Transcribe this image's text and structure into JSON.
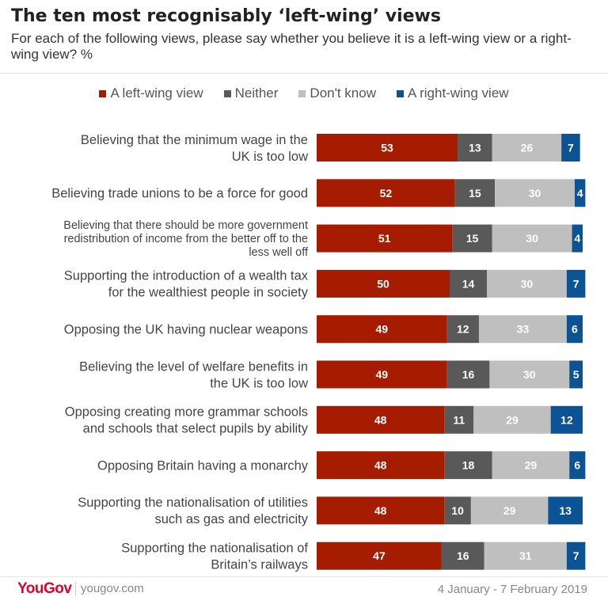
{
  "chart_data": {
    "type": "bar",
    "orientation": "horizontal",
    "stacked": true,
    "title": "The ten most recognisably ‘left-wing’ views",
    "subtitle": "For each of the following views, please say whether you believe it is a left-wing view or a right-wing view? %",
    "legend_position": "top",
    "grid": false,
    "categories": [
      [
        "Believing that the minimum wage in the",
        "UK is too low"
      ],
      [
        "Believing trade unions to be a force for good"
      ],
      [
        "Believing that there should be more government",
        "redistribution of income from the better off to the",
        "less well off"
      ],
      [
        "Supporting the introduction of a wealth tax",
        "for the wealthiest people in society"
      ],
      [
        "Opposing the UK having nuclear weapons"
      ],
      [
        "Believing the level of welfare benefits in",
        "the UK is too low"
      ],
      [
        "Opposing creating more grammar schools",
        "and schools that select pupils by ability"
      ],
      [
        "Opposing Britain having a monarchy"
      ],
      [
        "Supporting the nationalisation of utilities",
        "such as gas and electricity"
      ],
      [
        "Supporting the nationalisation of",
        "Britain’s railways"
      ]
    ],
    "series": [
      {
        "name": "A left-wing view",
        "color": "#a61c00",
        "values": [
          53,
          52,
          51,
          50,
          49,
          49,
          48,
          48,
          48,
          47
        ]
      },
      {
        "name": "Neither",
        "color": "#595959",
        "values": [
          13,
          15,
          15,
          14,
          12,
          16,
          11,
          18,
          10,
          16
        ]
      },
      {
        "name": "Don't know",
        "color": "#bfbfbf",
        "values": [
          26,
          30,
          30,
          30,
          33,
          30,
          29,
          29,
          29,
          31
        ]
      },
      {
        "name": "A right-wing view",
        "color": "#0b5394",
        "values": [
          7,
          4,
          4,
          7,
          6,
          5,
          12,
          6,
          13,
          7
        ]
      }
    ],
    "xlim": [
      0,
      100
    ]
  },
  "footer": {
    "brand": "YouGov",
    "site": "yougov.com",
    "dates": "4 January - 7 February 2019"
  }
}
